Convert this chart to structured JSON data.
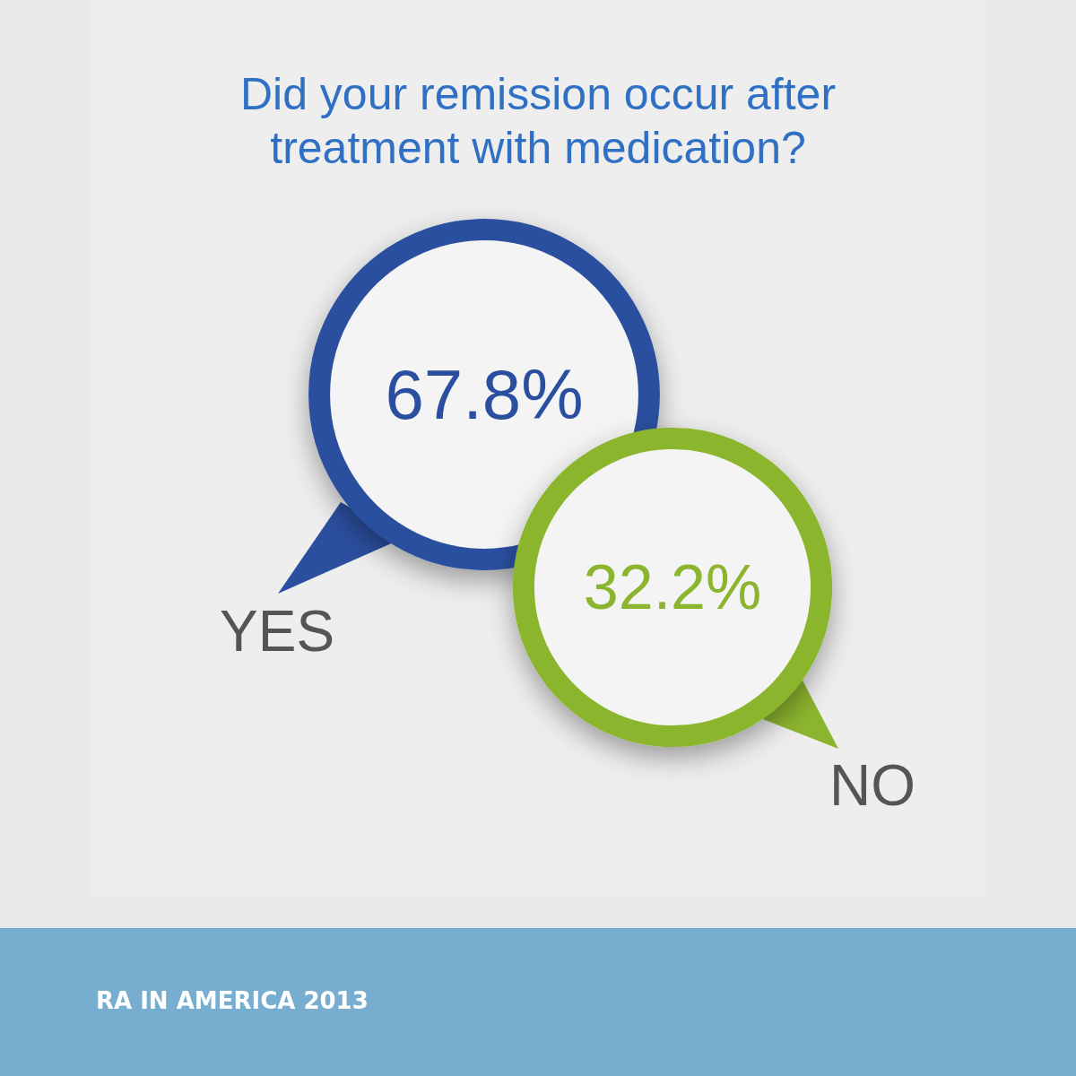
{
  "chart_data": {
    "type": "other",
    "title": "Did your remission occur after\ntreatment with medication?",
    "categories": [
      "YES",
      "NO"
    ],
    "values": [
      67.8,
      32.2
    ],
    "value_labels": [
      "67.8%",
      "32.2%"
    ],
    "colors": [
      "#2b4f9f",
      "#8cb52f"
    ],
    "annotations": [
      "RA IN AMERICA 2013"
    ]
  }
}
